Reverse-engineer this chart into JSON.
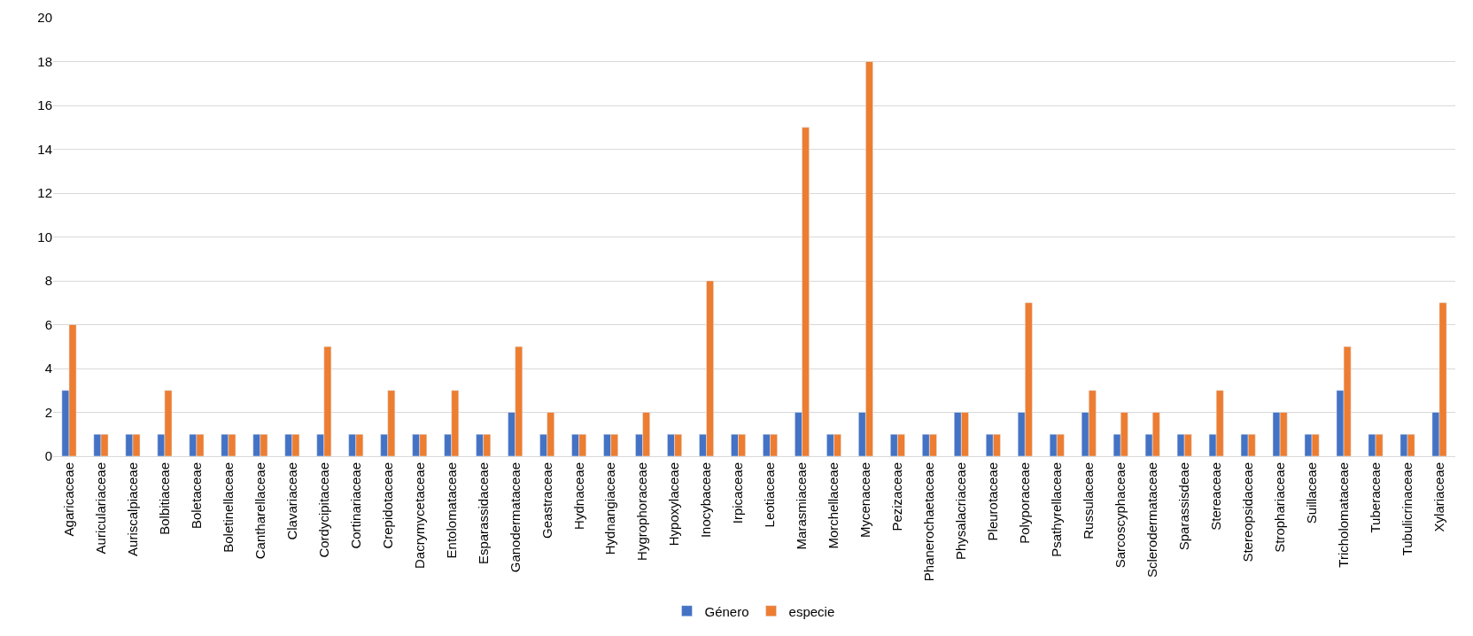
{
  "chart_data": {
    "type": "bar",
    "categories": [
      "Agaricaceae",
      "Auriculariaceae",
      "Auriscalpiaceae",
      "Bolbitiaceae",
      "Boletaceae",
      "Boletinellaceae",
      "Cantharellaceae",
      "Clavariaceae",
      "Cordycipitaceae",
      "Cortinariaceae",
      "Crepidotaceae",
      "Dacrymycetaceae",
      "Entolomataceae",
      "Esparassidaceae",
      "Ganodermataceae",
      "Geastraceae",
      "Hydnaceae",
      "Hydnangiaceae",
      "Hygrophoraceae",
      "Hypoxylaceae",
      "Inocybaceae",
      "Irpicaceae",
      "Leotiaceae",
      "Marasmiaceae",
      "Morchellaceae",
      "Mycenaceae",
      "Pezizaceae",
      "Phanerochaetaceae",
      "Physalacriaceae",
      "Pleurotaceae",
      "Polyporaceae",
      "Psathyrellaceae",
      "Russulaceae",
      "Sarcoscyphaceae",
      "Sclerodermataceae",
      "Sparassisdeae",
      "Stereaceae",
      "Stereopsidaceae",
      "Strophariaceae",
      "Suillaceae",
      "Tricholomataceae",
      "Tuberaceae",
      "Tubulicrinaceae",
      "Xylariaceae"
    ],
    "series": [
      {
        "name": "Género",
        "color": "#4472c4",
        "values": [
          3,
          1,
          1,
          1,
          1,
          1,
          1,
          1,
          1,
          1,
          1,
          1,
          1,
          1,
          2,
          1,
          1,
          1,
          1,
          1,
          1,
          1,
          1,
          2,
          1,
          2,
          1,
          1,
          2,
          1,
          2,
          1,
          2,
          1,
          1,
          1,
          1,
          1,
          2,
          1,
          3,
          1,
          1,
          2
        ]
      },
      {
        "name": "especie",
        "color": "#ed7d31",
        "values": [
          6,
          1,
          1,
          3,
          1,
          1,
          1,
          1,
          5,
          1,
          3,
          1,
          3,
          1,
          5,
          2,
          1,
          1,
          2,
          1,
          8,
          1,
          1,
          15,
          1,
          18,
          1,
          1,
          2,
          1,
          7,
          1,
          3,
          2,
          2,
          1,
          3,
          1,
          2,
          1,
          5,
          1,
          1,
          7
        ]
      }
    ],
    "ylim": [
      0,
      20
    ],
    "yticks": [
      0,
      2,
      4,
      6,
      8,
      10,
      12,
      14,
      16,
      18,
      20
    ],
    "grid": "y",
    "legend": "bottom"
  }
}
